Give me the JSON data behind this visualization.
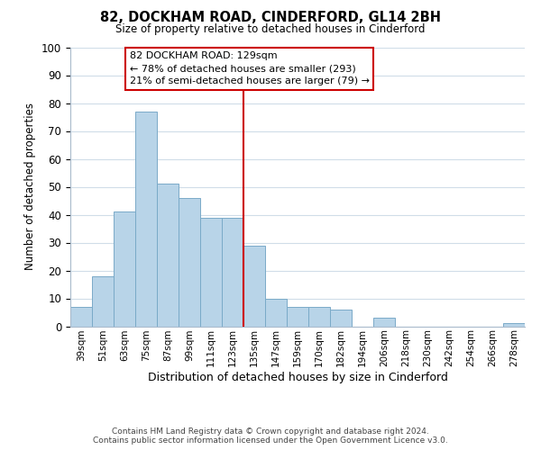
{
  "title": "82, DOCKHAM ROAD, CINDERFORD, GL14 2BH",
  "subtitle": "Size of property relative to detached houses in Cinderford",
  "xlabel": "Distribution of detached houses by size in Cinderford",
  "ylabel": "Number of detached properties",
  "bar_labels": [
    "39sqm",
    "51sqm",
    "63sqm",
    "75sqm",
    "87sqm",
    "99sqm",
    "111sqm",
    "123sqm",
    "135sqm",
    "147sqm",
    "159sqm",
    "170sqm",
    "182sqm",
    "194sqm",
    "206sqm",
    "218sqm",
    "230sqm",
    "242sqm",
    "254sqm",
    "266sqm",
    "278sqm"
  ],
  "bar_values": [
    7,
    18,
    41,
    77,
    51,
    46,
    39,
    39,
    29,
    10,
    7,
    7,
    6,
    0,
    3,
    0,
    0,
    0,
    0,
    0,
    1
  ],
  "bar_color": "#b8d4e8",
  "bar_edge_color": "#7aaac8",
  "ylim": [
    0,
    100
  ],
  "vline_color": "#cc0000",
  "annotation_title": "82 DOCKHAM ROAD: 129sqm",
  "annotation_line1": "← 78% of detached houses are smaller (293)",
  "annotation_line2": "21% of semi-detached houses are larger (79) →",
  "annotation_box_color": "#ffffff",
  "annotation_box_edge": "#cc0000",
  "footer_line1": "Contains HM Land Registry data © Crown copyright and database right 2024.",
  "footer_line2": "Contains public sector information licensed under the Open Government Licence v3.0.",
  "background_color": "#ffffff",
  "grid_color": "#d0dde8"
}
